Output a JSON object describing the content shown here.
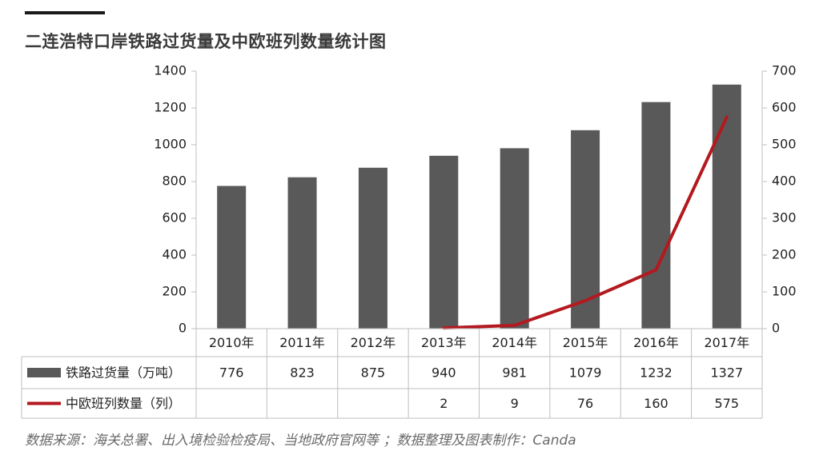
{
  "header": {
    "title": "二连浩特口岸铁路过货量及中欧班列数量统计图"
  },
  "footer": {
    "source": "数据来源：海关总署、出入境检验检疫局、当地政府官网等 ；数据整理及图表制作：Canda"
  },
  "colors": {
    "bar": "#595959",
    "line": "#b3191f",
    "rule": "#1a1a1a",
    "grid_border": "#bfbfbf"
  },
  "chart_data": {
    "type": "bar",
    "categories": [
      "2010年",
      "2011年",
      "2012年",
      "2013年",
      "2014年",
      "2015年",
      "2016年",
      "2017年"
    ],
    "series": [
      {
        "name": "铁路过货量（万吨）",
        "type": "bar",
        "axis": "left",
        "values": [
          776,
          823,
          875,
          940,
          981,
          1079,
          1232,
          1327
        ],
        "labels": [
          "776",
          "823",
          "875",
          "940",
          "981",
          "1079",
          "1232",
          "1327"
        ]
      },
      {
        "name": "中欧班列数量（列）",
        "type": "line",
        "axis": "right",
        "values": [
          null,
          null,
          null,
          2,
          9,
          76,
          160,
          575
        ],
        "labels": [
          "",
          "",
          "",
          "2",
          "9",
          "76",
          "160",
          "575"
        ]
      }
    ],
    "y_left": {
      "min": 0,
      "max": 1400,
      "ticks": [
        "0",
        "200",
        "400",
        "600",
        "800",
        "1000",
        "1200",
        "1400"
      ]
    },
    "y_right": {
      "min": 0,
      "max": 700,
      "ticks": [
        "0",
        "100",
        "200",
        "300",
        "400",
        "500",
        "600",
        "700"
      ]
    },
    "grid": false,
    "legend": "table-left",
    "data_table": true
  }
}
